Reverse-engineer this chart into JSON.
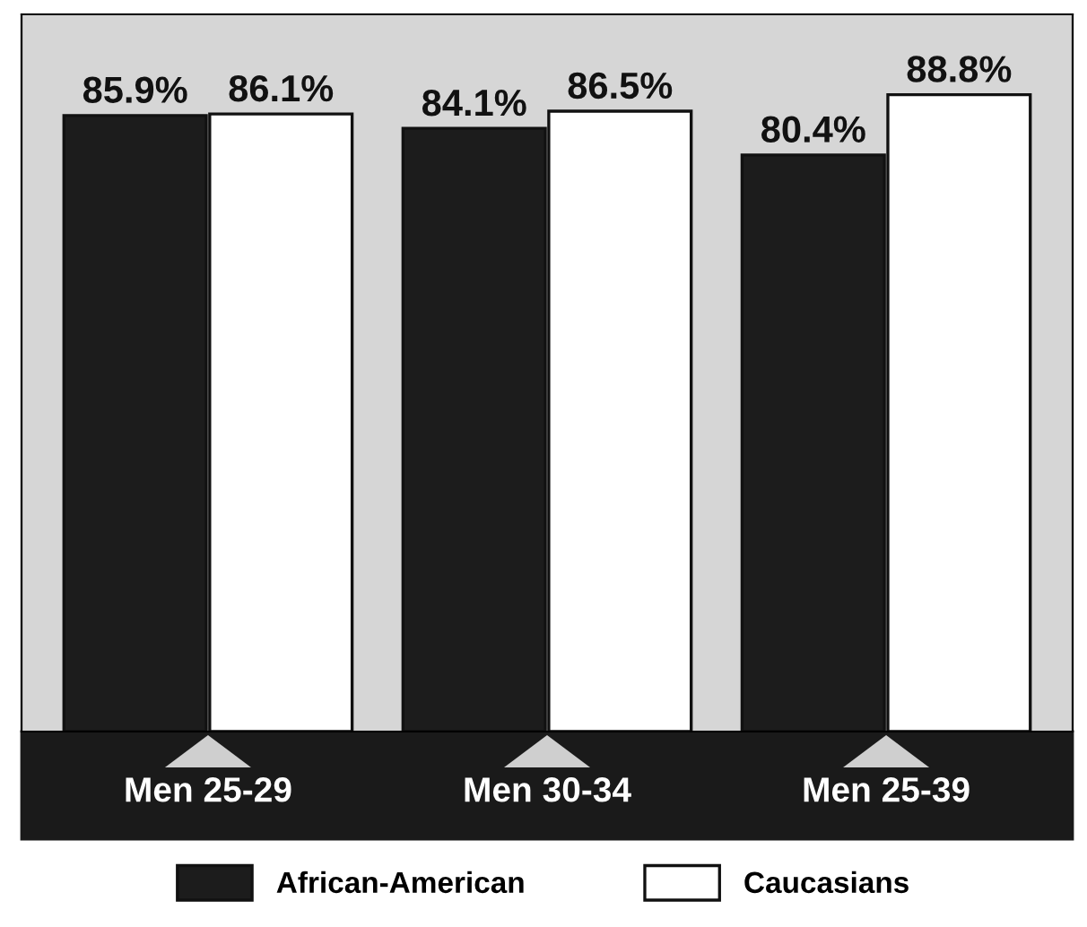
{
  "chart_data": {
    "type": "bar",
    "categories": [
      "Men 25-29",
      "Men 30-34",
      "Men 25-39"
    ],
    "ylim": [
      0,
      100
    ],
    "series": [
      {
        "name": "African-American",
        "color": "#1c1c1c",
        "values": [
          85.9,
          84.1,
          80.4
        ],
        "value_labels": [
          "85.9%",
          "84.1%",
          "80.4%"
        ]
      },
      {
        "name": "Caucasians",
        "color": "#ffffff",
        "values": [
          86.1,
          86.5,
          88.8
        ],
        "value_labels": [
          "86.1%",
          "86.5%",
          "88.8%"
        ]
      }
    ],
    "legend": "bottom",
    "grid": false
  }
}
